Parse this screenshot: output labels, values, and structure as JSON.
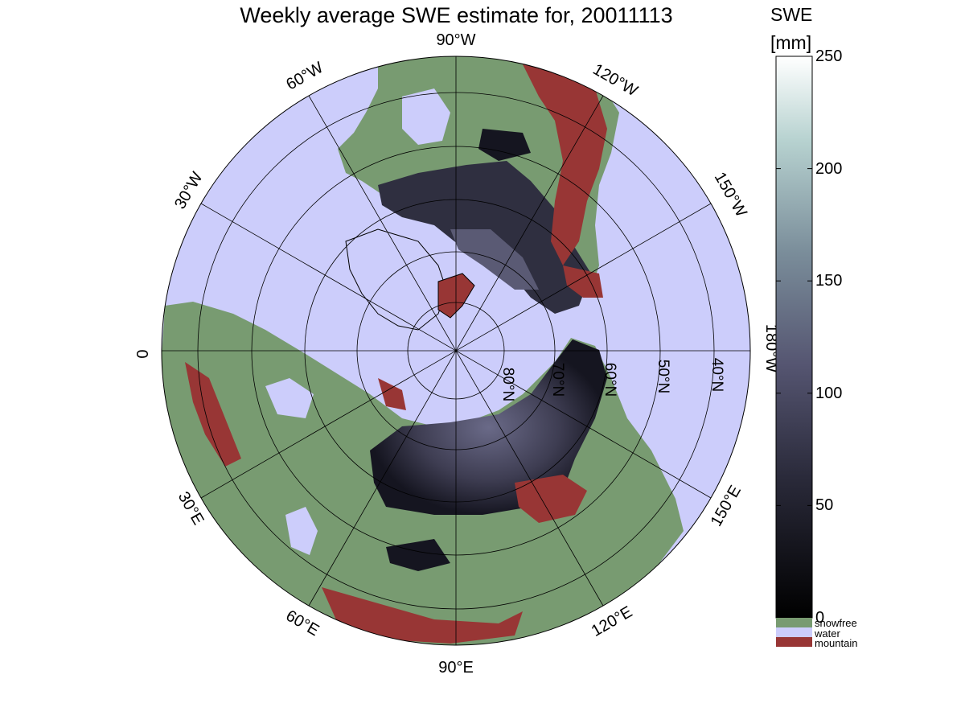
{
  "title": "Weekly average SWE estimate for, 20011113",
  "colorbar": {
    "label_line1": "SWE",
    "label_line2": "[mm]",
    "ticks": [
      "0",
      "50",
      "100",
      "150",
      "200",
      "250"
    ],
    "min": 0,
    "max": 250,
    "legend": [
      {
        "label": "snowfree",
        "color": "#789b71"
      },
      {
        "label": "water",
        "color": "#cccdfb"
      },
      {
        "label": "mountain",
        "color": "#983635"
      }
    ]
  },
  "map": {
    "projection": "north polar stereographic",
    "colors": {
      "water": "#cccdfb",
      "land": "#789b71",
      "mountain": "#983635",
      "snow_low": "#151520",
      "snow_mid": "#3e3d52",
      "snow_high": "#6a6a88"
    },
    "longitude_labels": [
      "0",
      "30°W",
      "60°W",
      "90°W",
      "120°W",
      "150°W",
      "180°W",
      "30°E",
      "60°E",
      "90°E",
      "120°E",
      "150°E"
    ],
    "latitude_labels": [
      "80°N",
      "70°N",
      "60°N",
      "50°N",
      "40°N"
    ]
  }
}
